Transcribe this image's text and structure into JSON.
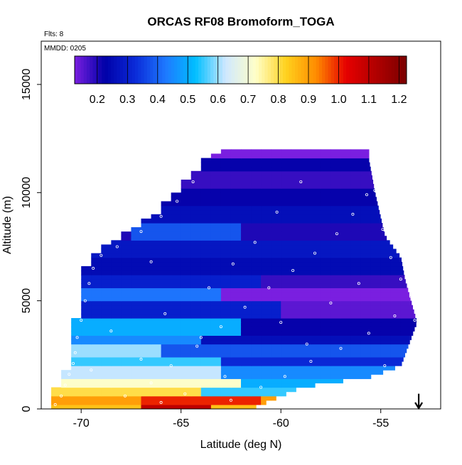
{
  "chart_data": {
    "type": "heatmap",
    "title": "ORCAS RF08 Bromoform_TOGA",
    "notes": {
      "flights": "Flts: 8",
      "date": "MMDD: 0205"
    },
    "xlabel": "Latitude (deg N)",
    "ylabel": "Altitude (m)",
    "xlim": [
      -72,
      -52
    ],
    "ylim": [
      0,
      17000
    ],
    "x_ticks": [
      -70,
      -65,
      -60,
      -55
    ],
    "x_tick_labels": [
      "-70",
      "-65",
      "-60",
      "-55"
    ],
    "y_ticks": [
      0,
      5000,
      10000,
      15000
    ],
    "y_tick_labels": [
      "0",
      "5000",
      "10000",
      "15000"
    ],
    "colorbar": {
      "min": 0.125,
      "max": 1.225,
      "ticks": [
        0.2,
        0.3,
        0.4,
        0.5,
        0.6,
        0.7,
        0.8,
        0.9,
        1.0,
        1.1,
        1.2
      ],
      "tick_labels": [
        "0.2",
        "0.3",
        "0.4",
        "0.5",
        "0.6",
        "0.7",
        "0.8",
        "0.9",
        "1.0",
        "1.1",
        "1.2"
      ],
      "colors": [
        "#7a1fe0",
        "#0000a8",
        "#0a2ad8",
        "#1e78ff",
        "#00bfff",
        "#cfe8ff",
        "#ffffc8",
        "#ffd21e",
        "#ff8c00",
        "#e60000",
        "#b00000",
        "#7a0000"
      ]
    },
    "domain_envelope": {
      "left_lat": [
        [
          0,
          -71.5
        ],
        [
          1000,
          -71.5
        ],
        [
          2500,
          -70.5
        ],
        [
          4200,
          -70.5
        ],
        [
          5000,
          -70.3
        ],
        [
          7000,
          -69.9
        ],
        [
          7800,
          -68.6
        ],
        [
          9000,
          -66.5
        ],
        [
          10500,
          -65
        ],
        [
          11500,
          -64.1
        ],
        [
          12000,
          -63.3
        ]
      ],
      "right_lat": [
        [
          0,
          -61.5
        ],
        [
          1000,
          -59.0
        ],
        [
          1500,
          -55.5
        ],
        [
          2000,
          -54.0
        ],
        [
          4000,
          -53.2
        ],
        [
          6000,
          -53.8
        ],
        [
          7000,
          -54.0
        ],
        [
          8000,
          -54.8
        ],
        [
          10000,
          -55.3
        ],
        [
          11500,
          -55.6
        ],
        [
          12000,
          -55.6
        ]
      ]
    },
    "layers": [
      {
        "z0": 0,
        "z1": 300,
        "value": 1.1,
        "lat_from": -67.0,
        "lat_to": -63.5
      },
      {
        "z0": 0,
        "z1": 300,
        "value": 0.85,
        "lat_from": -71.5,
        "lat_to": -67.0
      },
      {
        "z0": 300,
        "z1": 700,
        "value": 1.0,
        "lat_from": -67.0,
        "lat_to": -61.0
      },
      {
        "z0": 300,
        "z1": 700,
        "value": 0.9,
        "lat_from": -71.5,
        "lat_to": -67.0
      },
      {
        "z0": 700,
        "z1": 1100,
        "value": 0.8,
        "lat_from": -71.5,
        "lat_to": -64.0
      },
      {
        "z0": 700,
        "z1": 1100,
        "value": 0.55,
        "lat_from": -64.0,
        "lat_to": -59.0
      },
      {
        "z0": 1100,
        "z1": 1500,
        "value": 0.72,
        "lat_from": -71.5,
        "lat_to": -62.0
      },
      {
        "z0": 1100,
        "z1": 1500,
        "value": 0.5,
        "lat_from": -62.0,
        "lat_to": -56.0
      },
      {
        "z0": 1500,
        "z1": 2000,
        "value": 0.62,
        "lat_from": -71.0,
        "lat_to": -63.0
      },
      {
        "z0": 1500,
        "z1": 2000,
        "value": 0.45,
        "lat_from": -63.0,
        "lat_to": -54.0
      },
      {
        "z0": 2000,
        "z1": 2500,
        "value": 0.55,
        "lat_from": -70.5,
        "lat_to": -63.0
      },
      {
        "z0": 2000,
        "z1": 2500,
        "value": 0.32,
        "lat_from": -63.0,
        "lat_to": -53.5
      },
      {
        "z0": 2500,
        "z1": 3000,
        "value": 0.6,
        "lat_from": -70.5,
        "lat_to": -66.0
      },
      {
        "z0": 2500,
        "z1": 3000,
        "value": 0.38,
        "lat_from": -66.0,
        "lat_to": -53.2
      },
      {
        "z0": 3000,
        "z1": 3500,
        "value": 0.45,
        "lat_from": -70.5,
        "lat_to": -64.0
      },
      {
        "z0": 3000,
        "z1": 3500,
        "value": 0.26,
        "lat_from": -64.0,
        "lat_to": -53.2
      },
      {
        "z0": 3500,
        "z1": 4200,
        "value": 0.5,
        "lat_from": -70.5,
        "lat_to": -62.0
      },
      {
        "z0": 3500,
        "z1": 4200,
        "value": 0.22,
        "lat_from": -62.0,
        "lat_to": -53.2
      },
      {
        "z0": 4200,
        "z1": 5000,
        "value": 0.3,
        "lat_from": -70.3,
        "lat_to": -60.0
      },
      {
        "z0": 4200,
        "z1": 5000,
        "value": 0.15,
        "lat_from": -60.0,
        "lat_to": -53.2
      },
      {
        "z0": 5000,
        "z1": 5600,
        "value": 0.42,
        "lat_from": -70.2,
        "lat_to": -63.0
      },
      {
        "z0": 5000,
        "z1": 5600,
        "value": 0.12,
        "lat_from": -63.0,
        "lat_to": -53.5
      },
      {
        "z0": 5600,
        "z1": 6300,
        "value": 0.3,
        "lat_from": -70.0,
        "lat_to": -61.0
      },
      {
        "z0": 5600,
        "z1": 6300,
        "value": 0.18,
        "lat_from": -61.0,
        "lat_to": -53.8
      },
      {
        "z0": 6300,
        "z1": 7000,
        "value": 0.25,
        "lat_from": -69.9,
        "lat_to": -54.0
      },
      {
        "z0": 7000,
        "z1": 7800,
        "value": 0.28,
        "lat_from": -68.6,
        "lat_to": -54.3
      },
      {
        "z0": 7800,
        "z1": 8600,
        "value": 0.38,
        "lat_from": -67.5,
        "lat_to": -62.0
      },
      {
        "z0": 7800,
        "z1": 8600,
        "value": 0.2,
        "lat_from": -62.0,
        "lat_to": -54.8
      },
      {
        "z0": 8600,
        "z1": 9400,
        "value": 0.26,
        "lat_from": -66.5,
        "lat_to": -55.0
      },
      {
        "z0": 9400,
        "z1": 10200,
        "value": 0.22,
        "lat_from": -65.8,
        "lat_to": -55.2
      },
      {
        "z0": 10200,
        "z1": 11000,
        "value": 0.18,
        "lat_from": -65.0,
        "lat_to": -55.3
      },
      {
        "z0": 11000,
        "z1": 11600,
        "value": 0.22,
        "lat_from": -64.5,
        "lat_to": -55.6
      },
      {
        "z0": 11600,
        "z1": 12000,
        "value": 0.12,
        "lat_from": -63.8,
        "lat_to": -62.5
      }
    ],
    "sample_points": [
      [
        -71.3,
        200
      ],
      [
        -71.0,
        600
      ],
      [
        -70.8,
        1100
      ],
      [
        -70.6,
        1600
      ],
      [
        -70.4,
        2100
      ],
      [
        -70.3,
        2600
      ],
      [
        -70.2,
        3300
      ],
      [
        -70.0,
        4100
      ],
      [
        -69.8,
        5000
      ],
      [
        -69.6,
        5800
      ],
      [
        -69.4,
        6500
      ],
      [
        -69.0,
        7100
      ],
      [
        -68.2,
        7500
      ],
      [
        -67.0,
        8200
      ],
      [
        -66.0,
        8900
      ],
      [
        -65.2,
        9600
      ],
      [
        -64.4,
        10500
      ],
      [
        -63.4,
        11900
      ],
      [
        -67.8,
        600
      ],
      [
        -66.5,
        1200
      ],
      [
        -65.5,
        2000
      ],
      [
        -64.2,
        2900
      ],
      [
        -63.0,
        3800
      ],
      [
        -61.8,
        4700
      ],
      [
        -60.6,
        5600
      ],
      [
        -59.4,
        6400
      ],
      [
        -58.3,
        7200
      ],
      [
        -57.2,
        8100
      ],
      [
        -56.4,
        9000
      ],
      [
        -55.7,
        9900
      ],
      [
        -55.2,
        11500
      ],
      [
        -62.5,
        400
      ],
      [
        -61.0,
        1000
      ],
      [
        -59.8,
        1500
      ],
      [
        -58.5,
        2200
      ],
      [
        -57.0,
        2800
      ],
      [
        -55.6,
        3500
      ],
      [
        -54.3,
        4300
      ],
      [
        -53.5,
        5200
      ],
      [
        -54.0,
        6000
      ],
      [
        -54.5,
        7000
      ],
      [
        -54.9,
        8300
      ],
      [
        -55.3,
        10100
      ],
      [
        -65.8,
        4400
      ],
      [
        -63.6,
        5600
      ],
      [
        -62.4,
        6700
      ],
      [
        -61.3,
        7700
      ],
      [
        -60.2,
        9100
      ],
      [
        -59.0,
        10500
      ],
      [
        -66.5,
        6800
      ],
      [
        -64.0,
        3300
      ],
      [
        -60.0,
        4000
      ],
      [
        -57.5,
        4900
      ],
      [
        -56.1,
        5800
      ],
      [
        -68.5,
        3600
      ],
      [
        -67.0,
        2300
      ],
      [
        -58.7,
        3000
      ],
      [
        -54.8,
        2000
      ],
      [
        -53.3,
        4100
      ],
      [
        -62.8,
        1500
      ],
      [
        -64.8,
        700
      ],
      [
        -66.0,
        300
      ],
      [
        -69.5,
        1800
      ],
      [
        -68.0,
        9000
      ]
    ],
    "annotation": {
      "marker": "down-arrow",
      "lat": -53.1,
      "altitude": 700
    }
  }
}
